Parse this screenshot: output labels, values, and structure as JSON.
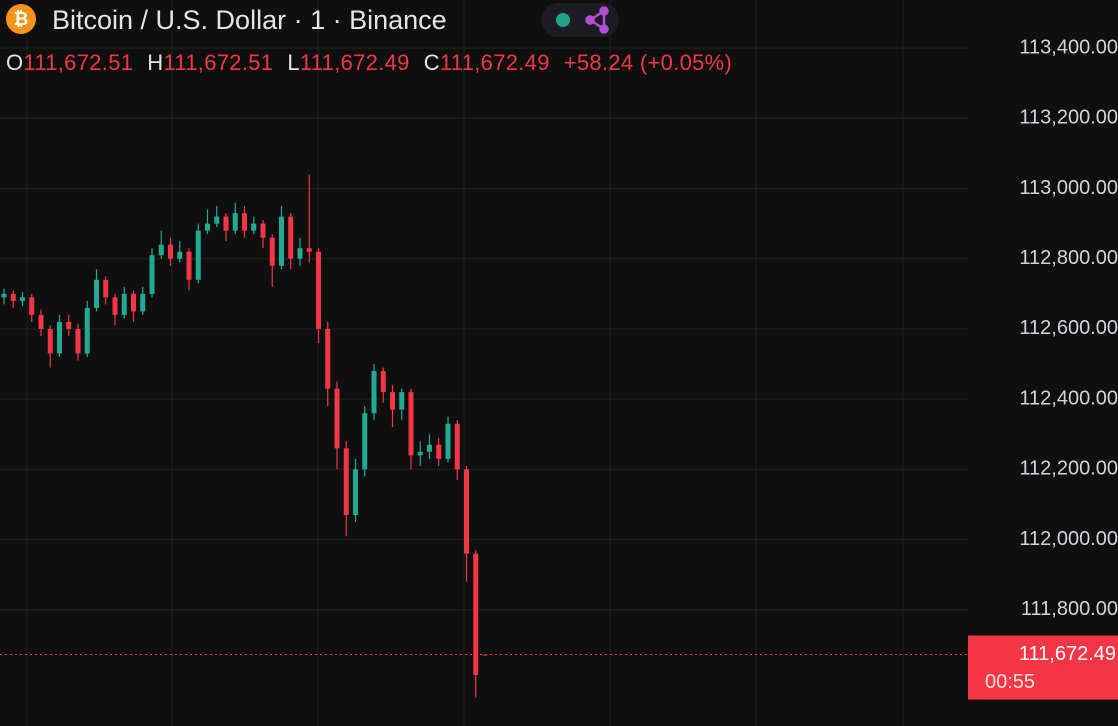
{
  "header": {
    "icon": "₿",
    "title": "Bitcoin / U.S. Dollar · 1 · Binance",
    "ohlc": [
      {
        "label": "O",
        "value": "111,672.51"
      },
      {
        "label": "H",
        "value": "111,672.51"
      },
      {
        "label": "L",
        "value": "111,672.49"
      },
      {
        "label": "C",
        "value": "111,672.49"
      }
    ],
    "change": "+58.24 (+0.05%)"
  },
  "chart_data": {
    "type": "candlestick",
    "up_color": "#22ab94",
    "down_color": "#f23645",
    "ylim": [
      111469,
      113537
    ],
    "yticks": [
      {
        "value": 111800,
        "label": "111,800.00"
      },
      {
        "value": 112000,
        "label": "112,000.00"
      },
      {
        "value": 112200,
        "label": "112,200.00"
      },
      {
        "value": 112400,
        "label": "112,400.00"
      },
      {
        "value": 112600,
        "label": "112,600.00"
      },
      {
        "value": 112800,
        "label": "112,800.00"
      },
      {
        "value": 113000,
        "label": "113,000.00"
      },
      {
        "value": 113200,
        "label": "113,200.00"
      },
      {
        "value": 113400,
        "label": "113,400.00"
      }
    ],
    "grid": true,
    "open": [
      112690,
      112700,
      112680,
      112690,
      112640,
      112600,
      112530,
      112620,
      112600,
      112530,
      112660,
      112740,
      112690,
      112640,
      112700,
      112650,
      112700,
      112810,
      112840,
      112800,
      112820,
      112740,
      112880,
      112900,
      112920,
      112880,
      112930,
      112880,
      112900,
      112860,
      112780,
      112920,
      112800,
      112830,
      112820,
      112600,
      112430,
      112260,
      112070,
      112200,
      112360,
      112480,
      112420,
      112370,
      112420,
      112240,
      112250,
      112270,
      112230,
      112330,
      112200,
      111960,
      111672.51
    ],
    "high": [
      112715,
      112710,
      112705,
      112700,
      112655,
      112610,
      112640,
      112640,
      112615,
      112680,
      112770,
      112750,
      112700,
      112720,
      112710,
      112720,
      112830,
      112880,
      112860,
      112850,
      112830,
      112900,
      112940,
      112950,
      112930,
      112960,
      112950,
      112920,
      112910,
      112870,
      112950,
      112930,
      112860,
      113040,
      112830,
      112620,
      112450,
      112280,
      112230,
      112380,
      112500,
      112490,
      112440,
      112430,
      112430,
      112280,
      112300,
      112290,
      112350,
      112340,
      112210,
      111970,
      111672.51
    ],
    "low": [
      112670,
      112660,
      112665,
      112620,
      112580,
      112490,
      112520,
      112580,
      112510,
      112520,
      112650,
      112670,
      112610,
      112630,
      112620,
      112640,
      112690,
      112800,
      112780,
      112790,
      112710,
      112730,
      112870,
      112890,
      112850,
      112870,
      112860,
      112870,
      112830,
      112720,
      112770,
      112770,
      112780,
      112790,
      112560,
      112380,
      112200,
      112010,
      112050,
      112180,
      112340,
      112390,
      112320,
      112340,
      112200,
      112210,
      112230,
      112210,
      112220,
      112170,
      111880,
      111550,
      111672.49
    ],
    "close": [
      112700,
      112680,
      112690,
      112640,
      112600,
      112530,
      112620,
      112600,
      112530,
      112660,
      112740,
      112690,
      112640,
      112700,
      112650,
      112700,
      112810,
      112840,
      112800,
      112820,
      112740,
      112880,
      112900,
      112920,
      112880,
      112930,
      112880,
      112900,
      112860,
      112780,
      112920,
      112800,
      112830,
      112820,
      112600,
      112430,
      112260,
      112070,
      112200,
      112360,
      112480,
      112420,
      112370,
      112420,
      112240,
      112250,
      112270,
      112230,
      112330,
      112200,
      111960,
      111614.25,
      111672.49
    ],
    "last_price": {
      "value": 111672.49,
      "label": "111,672.49",
      "countdown": "00:55"
    }
  }
}
